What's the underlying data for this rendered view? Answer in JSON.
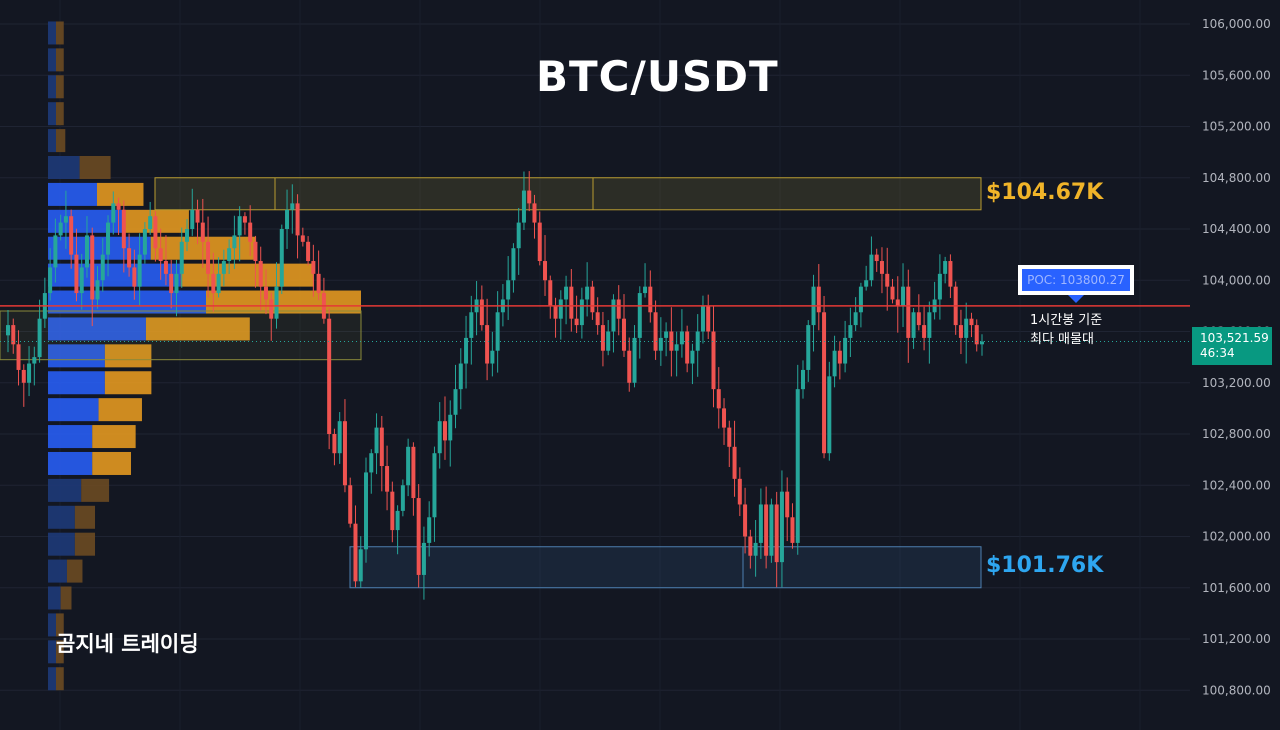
{
  "title": "BTC/USDT",
  "watermark": "곰지네 트레이딩",
  "levels": {
    "resistance": {
      "label": "$104.67K",
      "color": "#f0b429",
      "zone": [
        104550,
        104800
      ]
    },
    "support": {
      "label": "$101.76K",
      "color": "#2ea6f0",
      "zone": [
        101600,
        101920
      ]
    }
  },
  "poc": {
    "label": "POC: 103800.27",
    "value": 103800.27,
    "note_line1": "1시간봉 기준",
    "note_line2": "최다 매물대"
  },
  "last_price": {
    "price": "103,521.59",
    "countdown": "46:34",
    "value": 103521.59
  },
  "colors": {
    "background": "#131722",
    "up": "#26a69a",
    "down": "#ef5350",
    "poc_line": "#e53935",
    "volume_up": "#2962ff",
    "volume_down": "#f0a020"
  },
  "chart_data": {
    "type": "candlestick",
    "title": "BTC/USDT",
    "ylim": [
      100500,
      106150
    ],
    "y_ticks": [
      "106,000.00",
      "105,600.00",
      "105,200.00",
      "104,800.00",
      "104,400.00",
      "104,000.00",
      "103,600.00",
      "103,200.00",
      "102,800.00",
      "102,400.00",
      "102,000.00",
      "101,600.00",
      "101,200.00",
      "100,800.00"
    ],
    "y_tick_values": [
      106000,
      105600,
      105200,
      104800,
      104400,
      104000,
      103600,
      103200,
      102800,
      102400,
      102000,
      101600,
      101200,
      100800
    ],
    "closes": [
      103650,
      103500,
      103300,
      103200,
      103350,
      103400,
      103700,
      103900,
      104100,
      104350,
      104450,
      104500,
      104200,
      103900,
      104100,
      104350,
      103850,
      104000,
      104200,
      104450,
      104600,
      104550,
      104250,
      104100,
      103950,
      104200,
      104400,
      104500,
      104250,
      104150,
      104050,
      103900,
      104050,
      104300,
      104400,
      104550,
      104450,
      104300,
      104050,
      103900,
      104050,
      104150,
      104250,
      104350,
      104500,
      104450,
      104300,
      104150,
      103950,
      103850,
      103700,
      103950,
      104400,
      104550,
      104600,
      104350,
      104300,
      104150,
      104050,
      103900,
      103700,
      102800,
      102650,
      102900,
      102400,
      102100,
      101650,
      101900,
      102500,
      102650,
      102850,
      102550,
      102350,
      102050,
      102200,
      102400,
      102700,
      102300,
      101700,
      101950,
      102150,
      102650,
      102900,
      102750,
      102950,
      103150,
      103350,
      103550,
      103750,
      103850,
      103650,
      103350,
      103450,
      103750,
      103850,
      104000,
      104250,
      104450,
      104700,
      104600,
      104450,
      104150,
      104000,
      103800,
      103700,
      103850,
      103950,
      103700,
      103650,
      103850,
      103950,
      103750,
      103650,
      103450,
      103600,
      103850,
      103700,
      103450,
      103200,
      103550,
      103900,
      103950,
      103750,
      103450,
      103550,
      103600,
      103450,
      103500,
      103600,
      103350,
      103450,
      103600,
      103800,
      103600,
      103150,
      103000,
      102850,
      102700,
      102450,
      102250,
      102000,
      101850,
      101950,
      102250,
      101850,
      102250,
      101800,
      102350,
      102150,
      101950,
      103150,
      103300,
      103650,
      103950,
      103750,
      102650,
      103250,
      103450,
      103350,
      103550,
      103650,
      103750,
      103950,
      104000,
      104200,
      104150,
      104050,
      103950,
      103850,
      103800,
      103950,
      103550,
      103750,
      103650,
      103550,
      103750,
      103850,
      104050,
      104150,
      103950,
      103650,
      103550,
      103700,
      103650,
      103500,
      103521.59
    ],
    "volume_profile": [
      {
        "price": 105930,
        "up": 0.04,
        "down": 0.05
      },
      {
        "price": 105720,
        "up": 0.04,
        "down": 0.05
      },
      {
        "price": 105510,
        "up": 0.04,
        "down": 0.05
      },
      {
        "price": 105300,
        "up": 0.04,
        "down": 0.05
      },
      {
        "price": 105090,
        "up": 0.05,
        "down": 0.06
      },
      {
        "price": 104880,
        "up": 0.2,
        "down": 0.2
      },
      {
        "price": 104670,
        "up": 0.31,
        "down": 0.3
      },
      {
        "price": 104460,
        "up": 0.47,
        "down": 0.43
      },
      {
        "price": 104250,
        "up": 0.65,
        "down": 0.68
      },
      {
        "price": 104040,
        "up": 0.84,
        "down": 0.86
      },
      {
        "price": 103830,
        "up": 1.0,
        "down": 1.0
      },
      {
        "price": 103620,
        "up": 0.62,
        "down": 0.67
      },
      {
        "price": 103410,
        "up": 0.36,
        "down": 0.3
      },
      {
        "price": 103200,
        "up": 0.36,
        "down": 0.3
      },
      {
        "price": 102990,
        "up": 0.32,
        "down": 0.28
      },
      {
        "price": 102780,
        "up": 0.28,
        "down": 0.28
      },
      {
        "price": 102570,
        "up": 0.28,
        "down": 0.25
      },
      {
        "price": 102360,
        "up": 0.21,
        "down": 0.18
      },
      {
        "price": 102150,
        "up": 0.17,
        "down": 0.13
      },
      {
        "price": 101940,
        "up": 0.17,
        "down": 0.13
      },
      {
        "price": 101730,
        "up": 0.12,
        "down": 0.1
      },
      {
        "price": 101520,
        "up": 0.08,
        "down": 0.07
      },
      {
        "price": 101310,
        "up": 0.05,
        "down": 0.05
      },
      {
        "price": 101100,
        "up": 0.05,
        "down": 0.05
      },
      {
        "price": 100890,
        "up": 0.04,
        "down": 0.05
      }
    ]
  }
}
